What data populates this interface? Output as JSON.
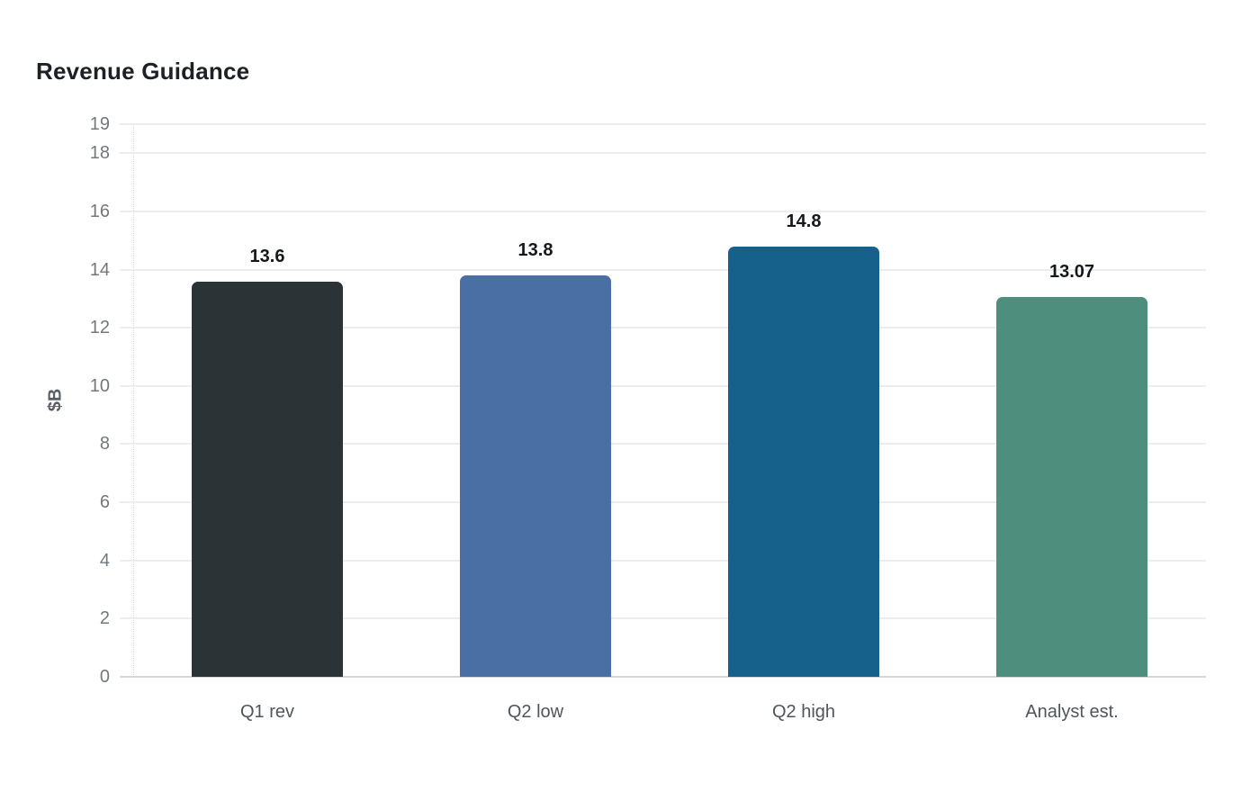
{
  "page": {
    "background_color": "#ffffff"
  },
  "chart_data": {
    "type": "bar",
    "title": "Revenue Guidance",
    "xlabel": "",
    "ylabel": "$B",
    "categories": [
      "Q1 rev",
      "Q2 low",
      "Q2 high",
      "Analyst est."
    ],
    "values": [
      13.6,
      13.8,
      14.8,
      13.07
    ],
    "value_labels": [
      "13.6",
      "13.8",
      "14.8",
      "13.07"
    ],
    "bar_colors": [
      "#2b3337",
      "#4a6fa5",
      "#16618c",
      "#4e8e7c"
    ],
    "ylim": [
      0,
      19
    ],
    "yticks": [
      0,
      2,
      4,
      6,
      8,
      10,
      12,
      14,
      16,
      18,
      19
    ],
    "grid": "horizontal-only",
    "gridline_color": "#ededed",
    "zero_line_color": "#d7d7d7",
    "legend_position": "none"
  }
}
